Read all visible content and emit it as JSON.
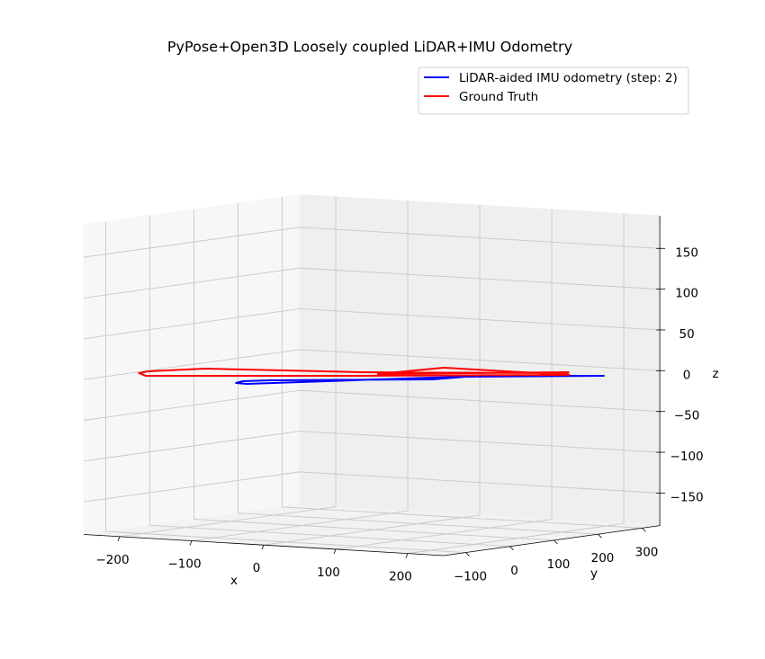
{
  "chart_data": {
    "type": "line3d",
    "title": "PyPose+Open3D Loosely coupled LiDAR+IMU Odometry",
    "xlabel": "x",
    "ylabel": "y",
    "zlabel": "z",
    "xlim": [
      -250,
      250
    ],
    "ylim": [
      -150,
      340
    ],
    "zlim": [
      -190,
      190
    ],
    "xticks": [
      {
        "value": -200,
        "label": "−200"
      },
      {
        "value": -100,
        "label": "−100"
      },
      0,
      100,
      200
    ],
    "yticks": [
      {
        "value": -100,
        "label": "−100"
      },
      0,
      100,
      200,
      300
    ],
    "zticks": [
      {
        "value": -150,
        "label": "−150"
      },
      {
        "value": -100,
        "label": "−100"
      },
      {
        "value": -50,
        "label": "−50"
      },
      0,
      50,
      100,
      150
    ],
    "grid": true,
    "legend": "upper right",
    "series": [
      {
        "name": "LiDAR-aided IMU odometry (step: 2)",
        "color": "#0000ff",
        "x": [
          232,
          108,
          89,
          -63,
          -83,
          -77,
          -60,
          76,
          105,
          232
        ],
        "y": [
          244,
          158,
          87,
          -33,
          -62,
          -87,
          -90,
          107,
          142,
          244
        ],
        "z": [
          0,
          0,
          0,
          0,
          0,
          0,
          0,
          0,
          0,
          0
        ]
      },
      {
        "name": "Ground Truth",
        "color": "#ff0000",
        "x": [
          178,
          -32,
          -208,
          -245,
          -241,
          -216,
          -7,
          191,
          18,
          -2,
          172
        ],
        "y": [
          251,
          121,
          58,
          -12,
          -39,
          -65,
          79,
          231,
          229,
          112,
          262
        ],
        "z": [
          0,
          0,
          0,
          0,
          0,
          0,
          0,
          0,
          0,
          0,
          0
        ]
      }
    ]
  }
}
